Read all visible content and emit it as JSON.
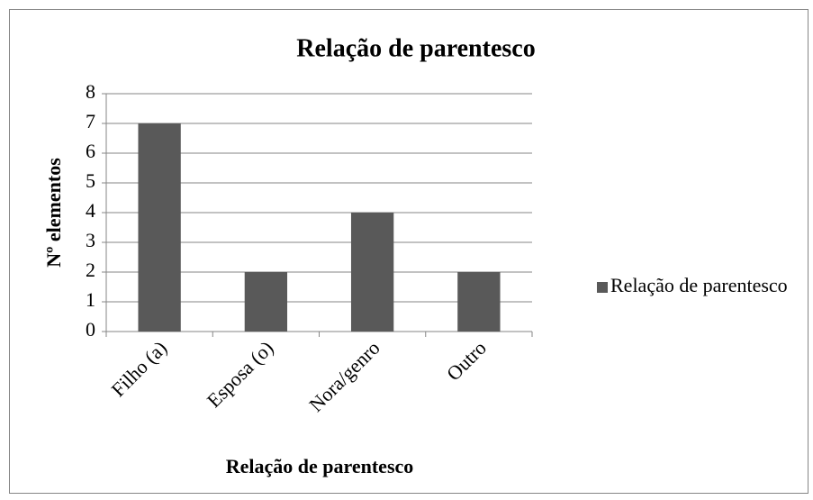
{
  "chart_data": {
    "type": "bar",
    "title": "Relação de parentesco",
    "x_label": "Relação de parentesco",
    "y_label": "Nº elementos",
    "categories": [
      "Filho (a)",
      "Esposa (o)",
      "Nora/genro",
      "Outro"
    ],
    "series": [
      {
        "name": "Relação de parentesco",
        "color": "#595959",
        "values": [
          7,
          2,
          4,
          2
        ]
      }
    ],
    "ylim": [
      0,
      8
    ],
    "yticks": [
      0,
      1,
      2,
      3,
      4,
      5,
      6,
      7,
      8
    ],
    "grid": true,
    "legend": "right"
  }
}
